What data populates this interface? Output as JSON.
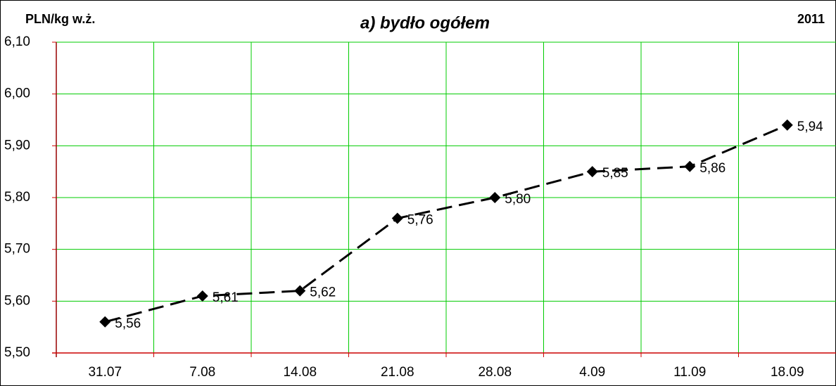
{
  "chart_data": {
    "type": "line",
    "title": "a) bydło ogółem",
    "y_label": "PLN/kg w.ż.",
    "annotation": "2011",
    "categories": [
      "31.07",
      "7.08",
      "14.08",
      "21.08",
      "28.08",
      "4.09",
      "11.09",
      "18.09"
    ],
    "series": [
      {
        "name": "bydło ogółem",
        "color": "#000000",
        "values": [
          5.56,
          5.61,
          5.62,
          5.76,
          5.8,
          5.85,
          5.86,
          5.94
        ],
        "value_labels": [
          "5,56",
          "5,61",
          "5,62",
          "5,76",
          "5,80",
          "5,85",
          "5,86",
          "5,94"
        ]
      }
    ],
    "ylim": [
      5.5,
      6.1
    ],
    "yticks": [
      {
        "value": 5.5,
        "label": "5,50"
      },
      {
        "value": 5.6,
        "label": "5,60"
      },
      {
        "value": 5.7,
        "label": "5,70"
      },
      {
        "value": 5.8,
        "label": "5,80"
      },
      {
        "value": 5.9,
        "label": "5,90"
      },
      {
        "value": 6.0,
        "label": "6,00"
      },
      {
        "value": 6.1,
        "label": "6,10"
      }
    ],
    "grid": true,
    "grid_color": "#00cc00",
    "axis_color": "#cc0000"
  }
}
